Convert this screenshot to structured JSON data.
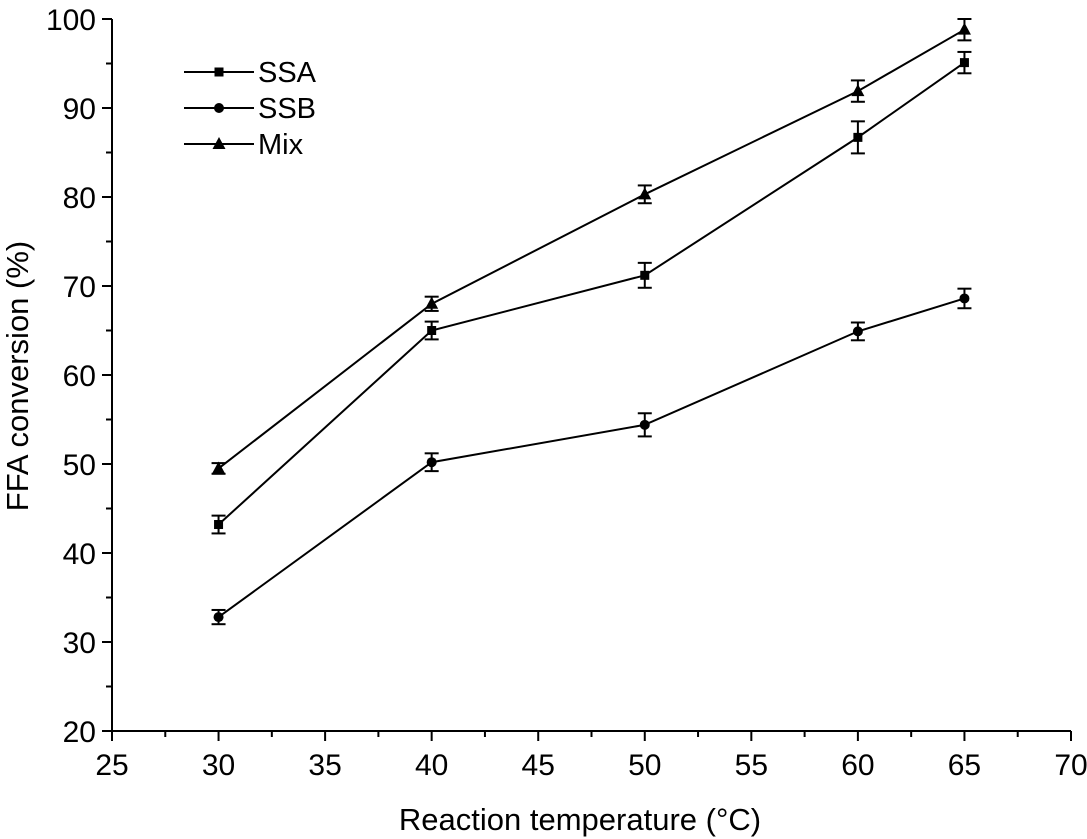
{
  "chart_data": {
    "type": "line",
    "title": "",
    "xlabel": "Reaction temperature (°C)",
    "ylabel": "FFA conversion (%)",
    "xlim": [
      25,
      70
    ],
    "ylim": [
      20,
      100
    ],
    "x_ticks": [
      "25",
      "30",
      "35",
      "40",
      "45",
      "50",
      "55",
      "60",
      "65",
      "70"
    ],
    "y_ticks": [
      "20",
      "30",
      "40",
      "50",
      "60",
      "70",
      "80",
      "90",
      "100"
    ],
    "x": [
      30,
      40,
      50,
      60,
      65
    ],
    "grid": false,
    "legend_position": "top-left",
    "series": [
      {
        "name": "SSA",
        "marker": "square",
        "values": [
          43.2,
          65.0,
          71.2,
          86.7,
          95.1
        ],
        "errors": [
          1.0,
          1.0,
          1.4,
          1.8,
          1.2
        ]
      },
      {
        "name": "SSB",
        "marker": "circle",
        "values": [
          32.8,
          50.2,
          54.4,
          64.9,
          68.6
        ],
        "errors": [
          0.8,
          1.0,
          1.3,
          1.0,
          1.1
        ]
      },
      {
        "name": "Mix",
        "marker": "triangle",
        "values": [
          49.5,
          68.0,
          80.3,
          91.9,
          98.8
        ],
        "errors": [
          0.6,
          0.8,
          1.0,
          1.2,
          1.2
        ]
      }
    ]
  }
}
